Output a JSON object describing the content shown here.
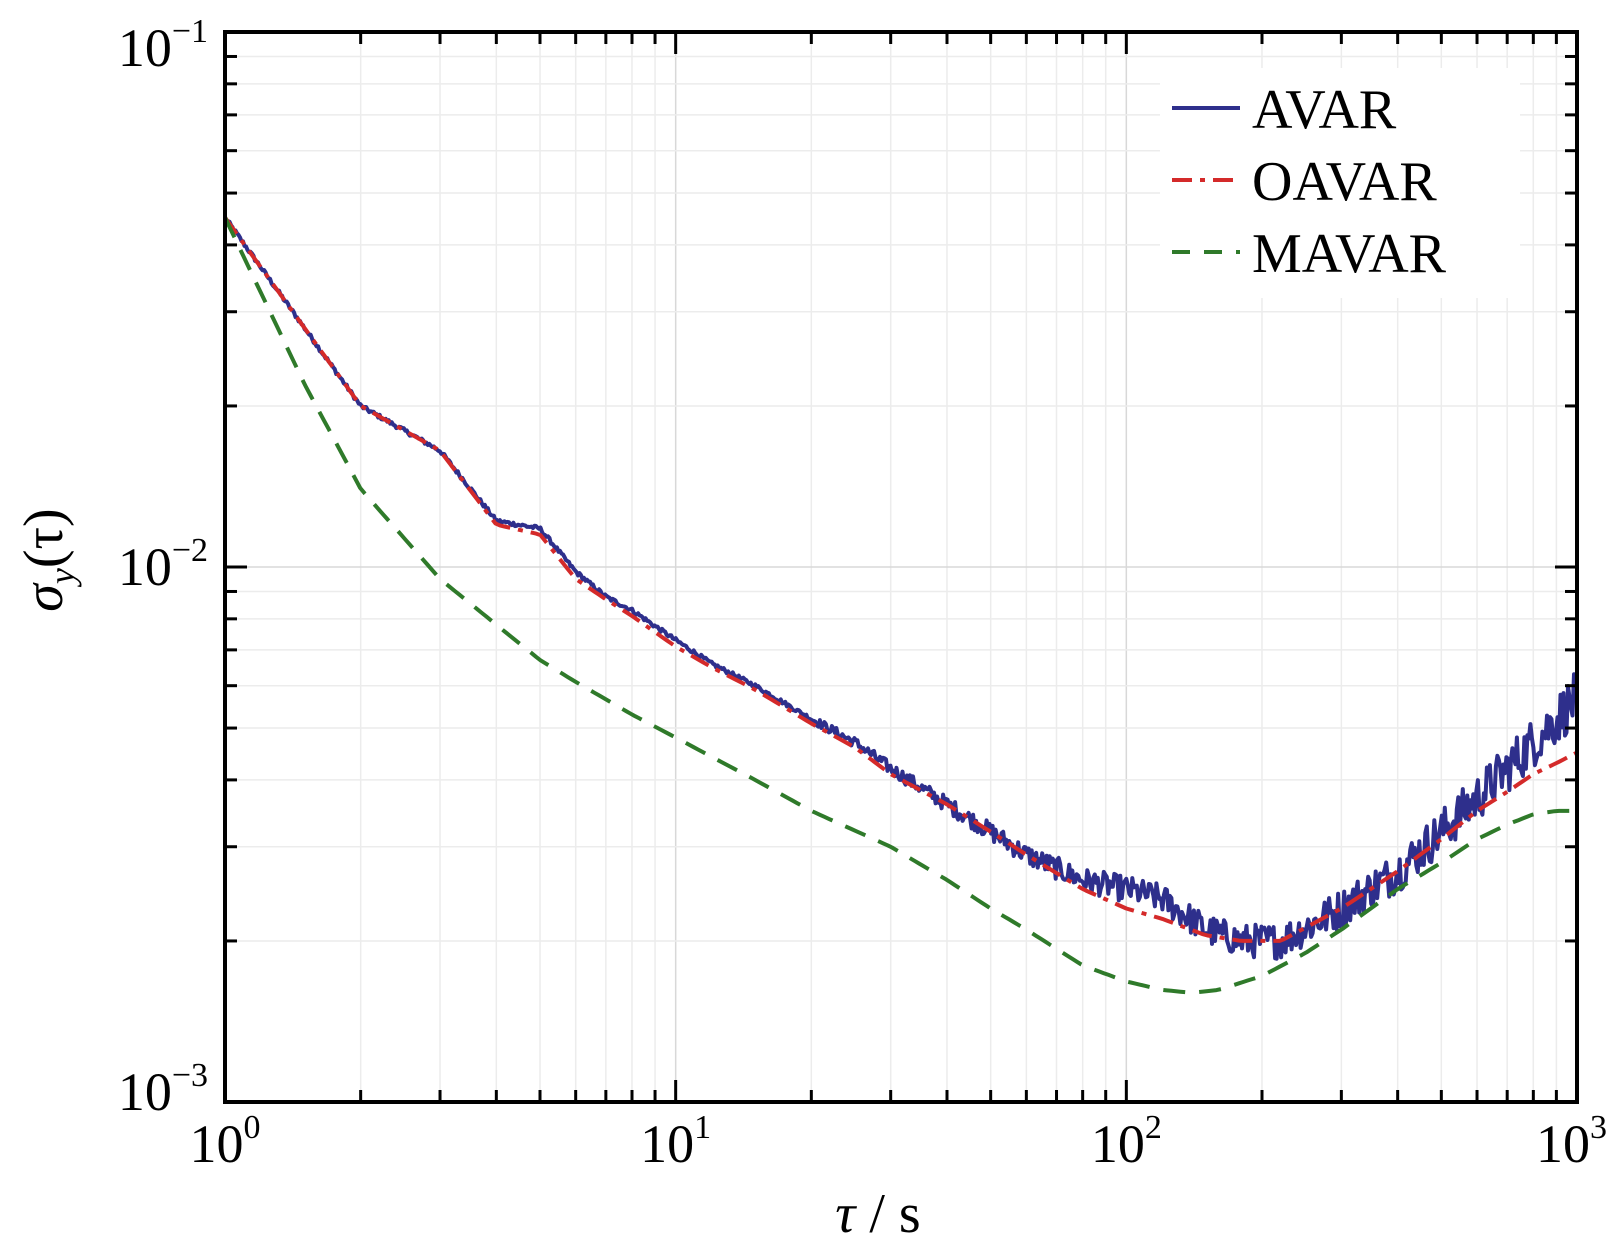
{
  "chart_data": {
    "type": "line",
    "xscale": "log",
    "yscale": "log",
    "xlim": [
      1,
      1000
    ],
    "ylim": [
      0.001,
      0.1
    ],
    "grid": true,
    "legend_position": "top-right",
    "xlabel": "τ / s",
    "ylabel": "σy(τ)",
    "xlabel_parts": {
      "symbol": "τ",
      "rest": " / s"
    },
    "ylabel_parts": {
      "symbol": "σ",
      "sub": "y",
      "arg": "(τ)"
    },
    "x_ticks": [
      {
        "base": "10",
        "exp": "0"
      },
      {
        "base": "10",
        "exp": "1"
      },
      {
        "base": "10",
        "exp": "2"
      },
      {
        "base": "10",
        "exp": "3"
      }
    ],
    "y_ticks": [
      {
        "base": "10",
        "exp": "−3"
      },
      {
        "base": "10",
        "exp": "−2"
      },
      {
        "base": "10",
        "exp": "−1"
      }
    ],
    "series": [
      {
        "name": "AVAR",
        "color": "#2e2f8c",
        "style": "solid",
        "noisy": true,
        "points": [
          [
            1,
            0.045
          ],
          [
            2,
            0.02
          ],
          [
            3,
            0.0165
          ],
          [
            4,
            0.0122
          ],
          [
            5,
            0.0118
          ],
          [
            6,
            0.0098
          ],
          [
            7,
            0.0088
          ],
          [
            8,
            0.0083
          ],
          [
            10,
            0.0073
          ],
          [
            12,
            0.0066
          ],
          [
            15,
            0.006
          ],
          [
            20,
            0.0052
          ],
          [
            25,
            0.0047
          ],
          [
            30,
            0.0042
          ],
          [
            40,
            0.0036
          ],
          [
            50,
            0.0032
          ],
          [
            60,
            0.0029
          ],
          [
            80,
            0.0026
          ],
          [
            100,
            0.0025
          ],
          [
            120,
            0.0024
          ],
          [
            150,
            0.0021
          ],
          [
            180,
            0.002
          ],
          [
            220,
            0.002
          ],
          [
            300,
            0.0023
          ],
          [
            400,
            0.0027
          ],
          [
            500,
            0.0032
          ],
          [
            600,
            0.0037
          ],
          [
            700,
            0.0042
          ],
          [
            800,
            0.0047
          ],
          [
            900,
            0.0052
          ],
          [
            1000,
            0.0057
          ]
        ]
      },
      {
        "name": "OAVAR",
        "color": "#d42a2a",
        "style": "dashdot",
        "noisy": false,
        "points": [
          [
            1,
            0.045
          ],
          [
            2,
            0.02
          ],
          [
            3,
            0.0165
          ],
          [
            4,
            0.012
          ],
          [
            5,
            0.0115
          ],
          [
            6,
            0.0095
          ],
          [
            7,
            0.0087
          ],
          [
            8,
            0.0081
          ],
          [
            10,
            0.0071
          ],
          [
            12,
            0.0065
          ],
          [
            15,
            0.0059
          ],
          [
            20,
            0.0051
          ],
          [
            25,
            0.0046
          ],
          [
            30,
            0.0041
          ],
          [
            40,
            0.0036
          ],
          [
            50,
            0.0032
          ],
          [
            60,
            0.0029
          ],
          [
            80,
            0.0025
          ],
          [
            100,
            0.0023
          ],
          [
            120,
            0.0022
          ],
          [
            150,
            0.00205
          ],
          [
            180,
            0.002
          ],
          [
            220,
            0.002
          ],
          [
            300,
            0.0023
          ],
          [
            400,
            0.0027
          ],
          [
            500,
            0.0031
          ],
          [
            600,
            0.0035
          ],
          [
            700,
            0.0038
          ],
          [
            800,
            0.0041
          ],
          [
            900,
            0.0043
          ],
          [
            1000,
            0.0045
          ]
        ]
      },
      {
        "name": "MAVAR",
        "color": "#2f7a2a",
        "style": "dashed",
        "noisy": false,
        "points": [
          [
            1,
            0.045
          ],
          [
            1.5,
            0.022
          ],
          [
            2,
            0.014
          ],
          [
            3,
            0.0095
          ],
          [
            4,
            0.0078
          ],
          [
            5,
            0.0067
          ],
          [
            6,
            0.0061
          ],
          [
            8,
            0.0053
          ],
          [
            10,
            0.0048
          ],
          [
            15,
            0.004
          ],
          [
            20,
            0.0035
          ],
          [
            30,
            0.003
          ],
          [
            40,
            0.0026
          ],
          [
            50,
            0.0023
          ],
          [
            60,
            0.0021
          ],
          [
            80,
            0.0018
          ],
          [
            100,
            0.00168
          ],
          [
            120,
            0.00162
          ],
          [
            140,
            0.0016
          ],
          [
            160,
            0.00162
          ],
          [
            200,
            0.00172
          ],
          [
            250,
            0.0019
          ],
          [
            300,
            0.0021
          ],
          [
            400,
            0.0025
          ],
          [
            500,
            0.0028
          ],
          [
            600,
            0.0031
          ],
          [
            700,
            0.0033
          ],
          [
            800,
            0.00345
          ],
          [
            900,
            0.0035
          ],
          [
            1000,
            0.0035
          ]
        ]
      }
    ]
  }
}
